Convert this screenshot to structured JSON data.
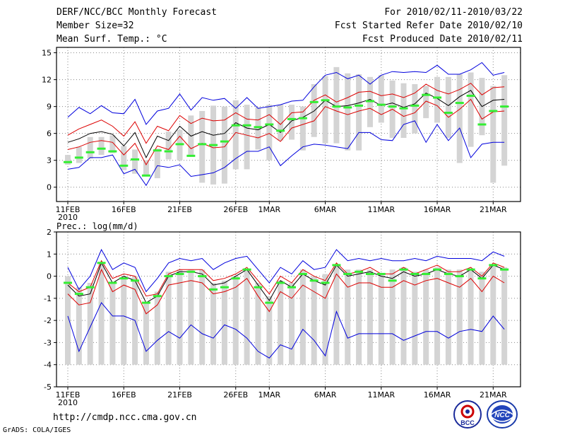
{
  "header": {
    "title": "DERF/NCC/BCC Monthly Forecast",
    "member_size": "Member Size=32",
    "variable": "Mean Surf. Temp.: °C",
    "period": "For 2010/02/11-2010/03/22",
    "started": "Fcst Started Refer Date 2010/02/10",
    "produced": "Fcst Produced Date 2010/02/11"
  },
  "footer": {
    "url": "http://cmdp.ncc.cma.gov.cn",
    "credit": "GrADS: COLA/IGES",
    "bcc_logo_text": "BCC",
    "ncc_logo_text": "NCC"
  },
  "colors": {
    "box": "#d4d4d4",
    "median": "#33ee33",
    "envelope": "#0000dd",
    "spread": "#dd0000",
    "mean": "#000000",
    "grid": "#888888"
  },
  "chart_data": [
    {
      "type": "ensemble-boxplot",
      "title": "Mean Surf. Temp.: °C",
      "xlabel": "",
      "ylabel": "°C",
      "x_tick_labels": [
        "11FEB",
        "16FEB",
        "21FEB",
        "26FEB",
        "1MAR",
        "6MAR",
        "11MAR",
        "16MAR",
        "21MAR"
      ],
      "x_tick_day_index": [
        0,
        5,
        10,
        15,
        18,
        23,
        28,
        33,
        38
      ],
      "x_sub_label": "2010",
      "ylim": [
        -1.6,
        15.6
      ],
      "y_ticks": [
        0,
        3,
        6,
        9,
        12,
        15
      ],
      "grid": true,
      "days": 40,
      "box_low": [
        2.5,
        2.7,
        3.2,
        3.6,
        3.8,
        1.9,
        1.5,
        1.2,
        1.0,
        3.1,
        3.0,
        3.4,
        0.5,
        0.3,
        0.4,
        2.0,
        2.0,
        4.2,
        3.0,
        5.2,
        5.3,
        4.1,
        5.6,
        4.9,
        4.9,
        4.1,
        4.1,
        6.7,
        7.2,
        5.5,
        5.5,
        6.0,
        7.7,
        7.2,
        5.5,
        2.7,
        4.5,
        5.8,
        0.5,
        2.4
      ],
      "box_high": [
        3.6,
        4.5,
        5.6,
        5.6,
        5.8,
        4.6,
        4.2,
        3.0,
        4.3,
        6.2,
        6.4,
        8.0,
        8.5,
        9.1,
        9.0,
        9.7,
        9.2,
        8.9,
        9.2,
        9.2,
        9.2,
        9.0,
        11.5,
        12.4,
        13.4,
        12.7,
        12.6,
        12.3,
        12.5,
        11.9,
        11.6,
        11.5,
        11.3,
        12.3,
        12.3,
        12.6,
        12.8,
        12.2,
        11.3,
        12.5
      ],
      "median": [
        2.8,
        3.3,
        3.9,
        4.3,
        4.0,
        2.4,
        3.1,
        1.3,
        4.1,
        4.0,
        4.8,
        3.5,
        4.8,
        4.7,
        5.1,
        6.9,
        6.9,
        6.7,
        7.0,
        6.3,
        7.6,
        7.7,
        9.5,
        9.7,
        9.0,
        8.9,
        9.1,
        9.6,
        9.2,
        9.0,
        8.8,
        9.1,
        10.3,
        10.0,
        8.3,
        9.4,
        10.2,
        7.0,
        8.5,
        9.0
      ],
      "max": [
        7.8,
        8.9,
        8.2,
        9.1,
        8.3,
        8.2,
        9.8,
        7.0,
        8.5,
        8.8,
        10.4,
        8.6,
        10.0,
        9.7,
        9.9,
        8.8,
        10.0,
        8.8,
        9.0,
        9.2,
        9.6,
        9.7,
        11.2,
        12.5,
        12.8,
        12.1,
        12.5,
        11.5,
        12.5,
        12.9,
        12.8,
        12.9,
        12.8,
        13.6,
        12.6,
        12.6,
        13.1,
        13.9,
        12.5,
        12.8
      ],
      "spread_hi": [
        5.8,
        6.5,
        7.0,
        7.5,
        6.8,
        5.7,
        7.3,
        4.9,
        6.8,
        6.3,
        8.0,
        7.1,
        7.7,
        7.4,
        7.5,
        8.3,
        7.6,
        7.5,
        8.1,
        7.0,
        8.3,
        8.4,
        9.7,
        10.3,
        9.5,
        10.0,
        10.6,
        10.7,
        10.2,
        10.4,
        10.0,
        10.5,
        11.5,
        10.8,
        10.4,
        10.9,
        11.6,
        10.3,
        11.1,
        11.2
      ],
      "mean": [
        5.0,
        5.4,
        6.0,
        6.2,
        5.9,
        4.6,
        6.1,
        3.3,
        5.7,
        5.2,
        6.8,
        5.7,
        6.2,
        5.8,
        6.0,
        7.2,
        6.6,
        6.4,
        7.0,
        6.1,
        7.4,
        7.8,
        8.5,
        9.7,
        9.0,
        9.1,
        9.4,
        9.8,
        9.1,
        9.4,
        8.9,
        9.3,
        10.5,
        9.9,
        9.1,
        10.1,
        10.8,
        9.0,
        9.7,
        9.8
      ],
      "spread_lo": [
        4.2,
        4.5,
        5.0,
        5.2,
        5.0,
        3.6,
        4.9,
        2.5,
        4.6,
        4.2,
        5.7,
        4.3,
        4.9,
        4.4,
        4.5,
        6.1,
        5.8,
        5.5,
        6.0,
        5.1,
        6.6,
        7.0,
        7.4,
        9.0,
        8.5,
        8.1,
        8.5,
        8.8,
        8.1,
        8.7,
        7.9,
        8.3,
        9.6,
        9.1,
        7.8,
        8.7,
        9.8,
        7.6,
        8.4,
        8.5
      ],
      "min": [
        2.0,
        2.2,
        3.3,
        3.3,
        3.6,
        1.5,
        2.0,
        0.2,
        2.4,
        2.2,
        2.5,
        1.2,
        1.4,
        1.6,
        2.2,
        3.2,
        4.0,
        4.0,
        4.5,
        2.4,
        3.5,
        4.5,
        4.8,
        4.7,
        4.5,
        4.3,
        6.1,
        6.1,
        5.3,
        5.2,
        7.0,
        7.4,
        5.0,
        7.0,
        5.2,
        6.6,
        3.3,
        4.8,
        5.0,
        5.0
      ]
    },
    {
      "type": "ensemble-boxplot",
      "title": "Prec.: log(mm/d)",
      "xlabel": "",
      "ylabel": "log(mm/d)",
      "x_tick_labels": [
        "11FEB",
        "16FEB",
        "21FEB",
        "26FEB",
        "1MAR",
        "6MAR",
        "11MAR",
        "16MAR",
        "21MAR"
      ],
      "x_tick_day_index": [
        0,
        5,
        10,
        15,
        18,
        23,
        28,
        33,
        38
      ],
      "x_sub_label": "2010",
      "ylim": [
        -5,
        2
      ],
      "y_ticks": [
        -5,
        -4,
        -3,
        -2,
        -1,
        0,
        1,
        2
      ],
      "grid": true,
      "days": 40,
      "box_low": [
        -4.0,
        -4.0,
        -4.0,
        -4.0,
        -4.0,
        -4.0,
        -4.0,
        -4.0,
        -4.0,
        -4.0,
        -4.0,
        -4.0,
        -4.0,
        -4.0,
        -4.0,
        -4.0,
        -4.0,
        -4.0,
        -4.0,
        -4.0,
        -4.0,
        -4.0,
        -4.0,
        -4.0,
        -4.0,
        -4.0,
        -4.0,
        -4.0,
        -4.0,
        -4.0,
        -4.0,
        -4.0,
        -4.0,
        -4.0,
        -4.0,
        -4.0,
        -4.0,
        -4.0,
        -4.0,
        -4.0
      ],
      "box_high": [
        0.0,
        -0.5,
        -0.3,
        0.6,
        -0.3,
        -0.1,
        0.0,
        -1.2,
        -0.7,
        0.2,
        0.3,
        0.3,
        0.3,
        -0.3,
        -0.2,
        0.0,
        0.3,
        -0.3,
        -0.9,
        -0.2,
        -0.3,
        0.3,
        0.0,
        0.1,
        0.5,
        0.3,
        0.3,
        0.3,
        0.1,
        0.3,
        0.4,
        0.2,
        0.3,
        0.4,
        0.3,
        0.3,
        0.3,
        0.2,
        0.5,
        0.4
      ],
      "median": [
        -0.3,
        -0.8,
        -0.5,
        0.6,
        -0.3,
        -0.1,
        -0.2,
        -1.2,
        -0.9,
        0.0,
        0.1,
        0.2,
        0.0,
        -0.6,
        -0.5,
        -0.1,
        0.3,
        -0.5,
        -1.2,
        -0.3,
        -0.5,
        0.1,
        -0.2,
        -0.3,
        0.5,
        0.1,
        0.2,
        0.1,
        0.1,
        -0.2,
        0.3,
        0.1,
        0.1,
        0.3,
        0.1,
        0.0,
        0.3,
        -0.1,
        0.5,
        0.3
      ],
      "max": [
        0.4,
        -0.6,
        0.0,
        1.2,
        0.3,
        0.6,
        0.4,
        -0.7,
        -0.1,
        0.6,
        0.8,
        0.7,
        0.8,
        0.3,
        0.6,
        0.8,
        0.9,
        0.3,
        -0.3,
        0.4,
        0.1,
        0.7,
        0.3,
        0.4,
        1.2,
        0.7,
        0.8,
        0.7,
        0.8,
        0.7,
        0.7,
        0.8,
        0.7,
        0.9,
        0.8,
        0.8,
        0.8,
        0.7,
        1.1,
        0.9
      ],
      "spread_hi": [
        -0.3,
        -0.7,
        -0.5,
        0.7,
        -0.1,
        0.1,
        0.0,
        -0.9,
        -0.8,
        0.1,
        0.3,
        0.3,
        0.3,
        -0.2,
        -0.1,
        0.1,
        0.4,
        -0.2,
        -0.8,
        0.0,
        -0.3,
        0.3,
        0.0,
        -0.2,
        0.6,
        0.1,
        0.2,
        0.4,
        0.1,
        0.1,
        0.4,
        0.1,
        0.3,
        0.5,
        0.2,
        0.2,
        0.4,
        0.0,
        0.6,
        0.4
      ],
      "mean": [
        -0.4,
        -0.9,
        -0.8,
        0.6,
        -0.3,
        0.0,
        -0.2,
        -1.2,
        -0.9,
        0.0,
        0.2,
        0.2,
        0.1,
        -0.4,
        -0.3,
        0.0,
        0.3,
        -0.4,
        -1.1,
        -0.2,
        -0.5,
        0.1,
        -0.2,
        -0.4,
        0.5,
        0.0,
        0.1,
        0.2,
        0.0,
        -0.1,
        0.2,
        0.0,
        0.1,
        0.3,
        0.1,
        0.0,
        0.3,
        -0.1,
        0.5,
        0.3
      ],
      "spread_lo": [
        -0.8,
        -1.3,
        -1.2,
        0.3,
        -0.7,
        -0.4,
        -0.6,
        -1.7,
        -1.3,
        -0.4,
        -0.3,
        -0.2,
        -0.3,
        -0.8,
        -0.7,
        -0.5,
        -0.1,
        -0.9,
        -1.6,
        -0.7,
        -1.0,
        -0.4,
        -0.7,
        -1.0,
        0.1,
        -0.5,
        -0.3,
        -0.3,
        -0.5,
        -0.5,
        -0.2,
        -0.4,
        -0.2,
        -0.1,
        -0.3,
        -0.5,
        -0.1,
        -0.7,
        0.0,
        -0.3
      ],
      "min": [
        -1.8,
        -3.4,
        -2.3,
        -1.2,
        -1.8,
        -1.8,
        -2.0,
        -3.4,
        -2.9,
        -2.5,
        -2.8,
        -2.2,
        -2.6,
        -2.8,
        -2.2,
        -2.4,
        -2.8,
        -3.4,
        -3.7,
        -3.1,
        -3.3,
        -2.4,
        -2.9,
        -3.6,
        -1.6,
        -2.8,
        -2.6,
        -2.6,
        -2.6,
        -2.6,
        -2.9,
        -2.7,
        -2.5,
        -2.5,
        -2.8,
        -2.5,
        -2.4,
        -2.5,
        -1.8,
        -2.4
      ]
    }
  ]
}
